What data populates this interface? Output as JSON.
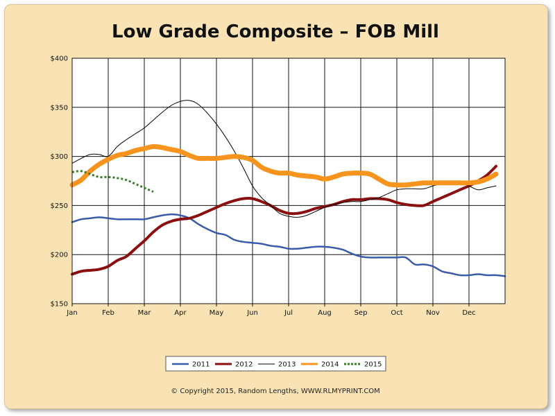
{
  "chart_data": {
    "type": "line",
    "title": "Low Grade Composite – FOB Mill",
    "copyright": "© Copyright 2015, Random Lengths, WWW.RLMYPRINT.COM",
    "xlabel": "",
    "ylabel": "",
    "ylim": [
      150,
      400
    ],
    "xlim": [
      0,
      12
    ],
    "y_ticks": [
      150,
      200,
      250,
      300,
      350,
      400
    ],
    "y_tick_labels": [
      "$150",
      "$200",
      "$250",
      "$300",
      "$350",
      "$400"
    ],
    "months": [
      "Jan",
      "Feb",
      "Mar",
      "Apr",
      "May",
      "Jun",
      "Jul",
      "Aug",
      "Sep",
      "Oct",
      "Nov",
      "Dec"
    ],
    "grid": true,
    "legend_position": "bottom-center",
    "series": [
      {
        "name": "2011",
        "color": "#3a5ba9",
        "width": 2.5,
        "dash": "",
        "x": [
          0,
          0.25,
          0.5,
          0.75,
          1,
          1.25,
          1.5,
          1.75,
          2,
          2.25,
          2.5,
          2.75,
          3,
          3.25,
          3.5,
          3.75,
          4,
          4.25,
          4.5,
          4.75,
          5,
          5.25,
          5.5,
          5.75,
          6,
          6.25,
          6.5,
          6.75,
          7,
          7.25,
          7.5,
          7.75,
          8,
          8.25,
          8.5,
          8.75,
          9,
          9.25,
          9.5,
          9.75,
          10,
          10.25,
          10.5,
          10.75,
          11,
          11.25,
          11.5,
          11.75,
          12
        ],
        "y": [
          233,
          236,
          237,
          238,
          237,
          236,
          236,
          236,
          236,
          238,
          240,
          241,
          240,
          237,
          231,
          226,
          222,
          220,
          215,
          213,
          212,
          211,
          209,
          208,
          206,
          206,
          207,
          208,
          208,
          207,
          205,
          201,
          198,
          197,
          197,
          197,
          197,
          197,
          190,
          190,
          188,
          183,
          181,
          179,
          179,
          180,
          179,
          179,
          178
        ]
      },
      {
        "name": "2012",
        "color": "#8b0f0f",
        "width": 4,
        "dash": "",
        "x": [
          0,
          0.25,
          0.5,
          0.75,
          1,
          1.25,
          1.5,
          1.75,
          2,
          2.25,
          2.5,
          2.75,
          3,
          3.25,
          3.5,
          3.75,
          4,
          4.25,
          4.5,
          4.75,
          5,
          5.25,
          5.5,
          5.75,
          6,
          6.25,
          6.5,
          6.75,
          7,
          7.25,
          7.5,
          7.75,
          8,
          8.25,
          8.5,
          8.75,
          9,
          9.25,
          9.5,
          9.75,
          10,
          10.25,
          10.5,
          10.75,
          11,
          11.25,
          11.5,
          11.75
        ],
        "y": [
          180,
          183,
          184,
          185,
          188,
          194,
          198,
          206,
          214,
          223,
          230,
          234,
          236,
          237,
          240,
          244,
          248,
          252,
          255,
          257,
          257,
          254,
          250,
          245,
          242,
          242,
          244,
          247,
          249,
          251,
          254,
          256,
          256,
          257,
          257,
          256,
          253,
          251,
          250,
          250,
          254,
          258,
          262,
          266,
          270,
          275,
          281,
          290
        ]
      },
      {
        "name": "2013",
        "color": "#000000",
        "width": 1,
        "dash": "",
        "x": [
          0,
          0.25,
          0.5,
          0.75,
          1,
          1.25,
          1.5,
          1.75,
          2,
          2.25,
          2.5,
          2.75,
          3,
          3.25,
          3.5,
          3.75,
          4,
          4.25,
          4.5,
          4.75,
          5,
          5.25,
          5.5,
          5.75,
          6,
          6.25,
          6.5,
          6.75,
          7,
          7.25,
          7.5,
          7.75,
          8,
          8.25,
          8.5,
          8.75,
          9,
          9.25,
          9.5,
          9.75,
          10,
          10.25,
          10.5,
          10.75,
          11,
          11.25,
          11.5,
          11.75
        ],
        "y": [
          293,
          298,
          302,
          302,
          300,
          310,
          317,
          323,
          329,
          337,
          345,
          352,
          356,
          357,
          353,
          344,
          333,
          320,
          305,
          288,
          270,
          258,
          250,
          242,
          239,
          238,
          240,
          244,
          248,
          251,
          253,
          254,
          254,
          256,
          258,
          262,
          266,
          267,
          267,
          267,
          270,
          272,
          273,
          273,
          270,
          266,
          268,
          270
        ]
      },
      {
        "name": "2014",
        "color": "#f7941d",
        "width": 7,
        "dash": "",
        "x": [
          0,
          0.25,
          0.5,
          0.75,
          1,
          1.25,
          1.5,
          1.75,
          2,
          2.25,
          2.5,
          2.75,
          3,
          3.25,
          3.5,
          3.75,
          4,
          4.25,
          4.5,
          4.75,
          5,
          5.25,
          5.5,
          5.75,
          6,
          6.25,
          6.5,
          6.75,
          7,
          7.25,
          7.5,
          7.75,
          8,
          8.25,
          8.5,
          8.75,
          9,
          9.25,
          9.5,
          9.75,
          10,
          10.25,
          10.5,
          10.75,
          11,
          11.25,
          11.5,
          11.75
        ],
        "y": [
          271,
          276,
          285,
          292,
          297,
          301,
          303,
          306,
          308,
          310,
          309,
          307,
          305,
          301,
          298,
          298,
          298,
          299,
          300,
          299,
          296,
          289,
          285,
          283,
          283,
          281,
          280,
          279,
          277,
          279,
          282,
          283,
          283,
          282,
          277,
          272,
          271,
          271,
          272,
          273,
          273,
          273,
          273,
          273,
          273,
          274,
          277,
          282
        ]
      },
      {
        "name": "2015",
        "color": "#3a7d2a",
        "width": 3,
        "dash": "3,3",
        "x": [
          0,
          0.25,
          0.5,
          0.75,
          1,
          1.25,
          1.5,
          1.75,
          2,
          2.25
        ],
        "y": [
          284,
          285,
          282,
          279,
          279,
          278,
          276,
          272,
          268,
          264
        ]
      }
    ]
  }
}
